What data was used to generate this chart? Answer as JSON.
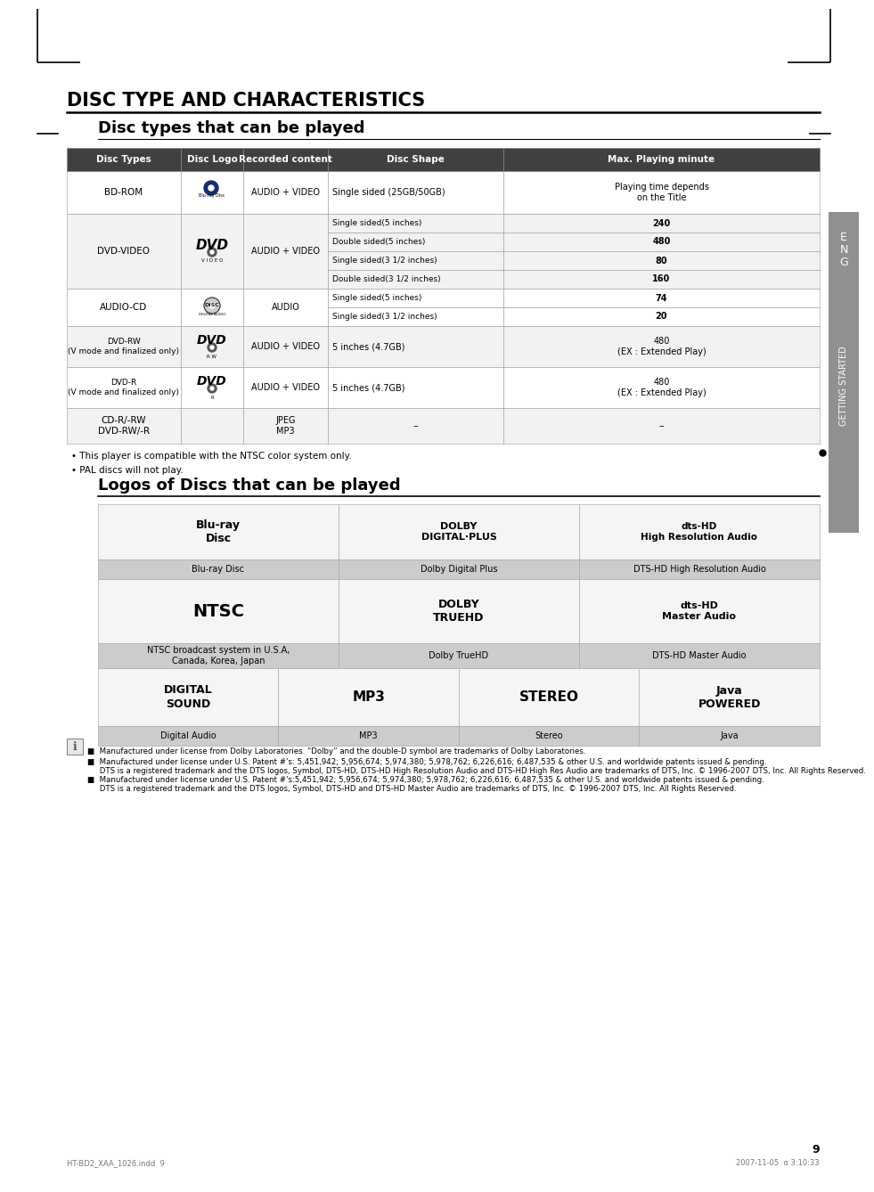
{
  "title": "DISC TYPE AND CHARACTERISTICS",
  "subtitle1": "Disc types that can be played",
  "subtitle2": "Logos of Discs that can be played",
  "table_headers": [
    "Disc Types",
    "Disc Logo",
    "Recorded content",
    "Disc Shape",
    "Max. Playing minute"
  ],
  "notes": [
    "• This player is compatible with the NTSC color system only.",
    "• PAL discs will not play."
  ],
  "footnote1": "■  Manufactured under license from Dolby Laboratories. “Dolby” and the double-D symbol are trademarks of Dolby Laboratories.",
  "footnote2": "■  Manufactured under license under U.S. Patent #'s: 5,451,942; 5,956,674; 5,974,380; 5,978,762; 6,226,616; 6,487,535 & other U.S. and worldwide patents issued & pending.\n     DTS is a registered trademark and the DTS logos, Symbol, DTS-HD, DTS-HD High Resolution Audio and DTS-HD High Res Audio are trademarks of DTS, Inc. © 1996-2007 DTS, Inc. All Rights Reserved.",
  "footnote3": "■  Manufactured under license under U.S. Patent #'s:5,451,942; 5,956,674; 5,974,380; 5,978,762; 6,226,616; 6,487,535 & other U.S. and worldwide patents issued & pending.\n     DTS is a registered trademark and the DTS logos, Symbol, DTS-HD and DTS-HD Master Audio are trademarks of DTS, Inc. © 1996-2007 DTS, Inc. All Rights Reserved.",
  "page_number": "9",
  "bottom_left": "HT-BD2_XAA_1026.indd  9",
  "bottom_right": "2007-11-05  α 3:10:33",
  "bg_color": "#ffffff",
  "header_bg": "#404040",
  "header_fg": "#ffffff",
  "cell_alt1": "#f2f2f2",
  "cell_alt2": "#ffffff",
  "label_bg": "#cccccc",
  "logo_bg": "#f5f5f5",
  "sidebar_bg": "#909090"
}
